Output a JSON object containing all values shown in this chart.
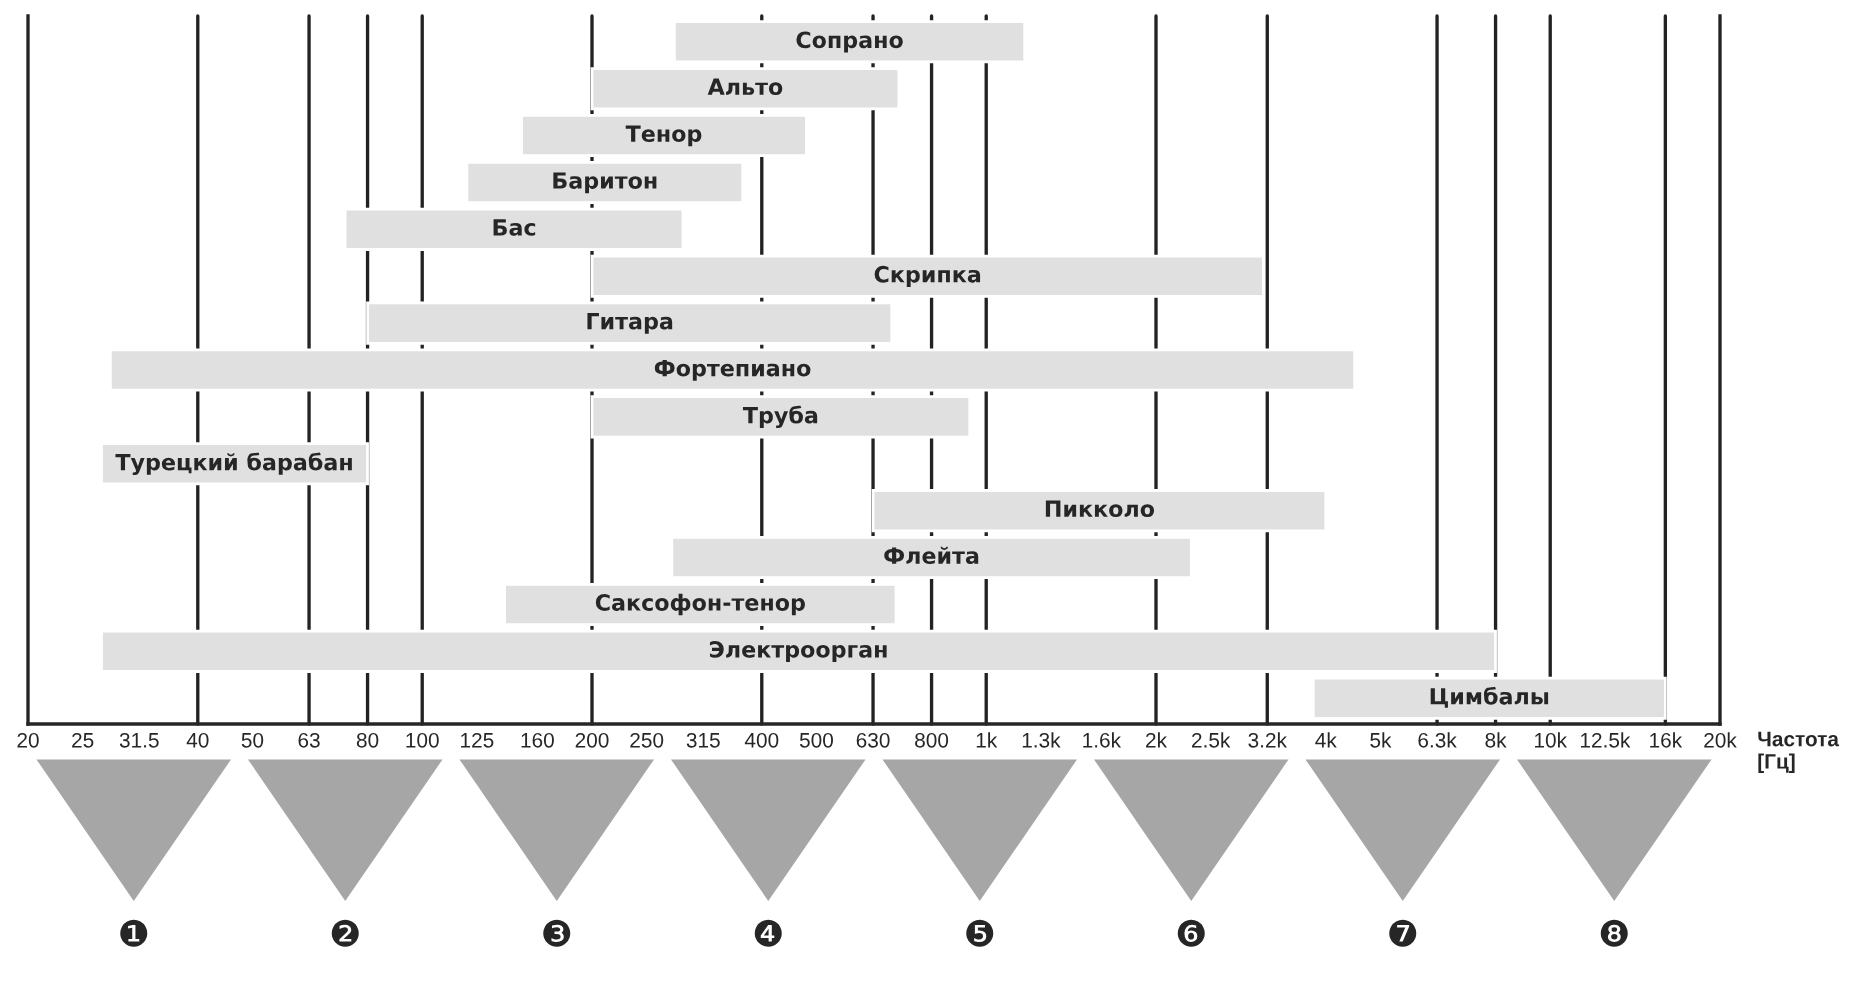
{
  "chart_data": {
    "type": "bar",
    "orientation": "horizontal",
    "log": "x",
    "xlabel": "Частота\n[Гц]",
    "tick_labels": "x",
    "categories": [
      "Сопрано",
      "Альто",
      "Тенор",
      "Баритон",
      "Бас",
      "Скрипка",
      "Гитара",
      "Фортепиано",
      "Труба",
      "Турецкий барабан",
      "Пикколо",
      "Флейта",
      "Саксофон-тенор",
      "Электроорган",
      "Цимбалы"
    ],
    "base": [
      280,
      200,
      150,
      120,
      73,
      200,
      80,
      28,
      200,
      27,
      630,
      277,
      140,
      27,
      3800
    ],
    "values": [
      890,
      500,
      330,
      250,
      217,
      2900,
      600,
      4472,
      735,
      53,
      3370,
      2033,
      552,
      7973,
      12200
    ],
    "color": "#e0e0e0",
    "xlim": [
      20,
      20000
    ],
    "xticks": [
      20,
      25,
      {
        "value": 31.5,
        "label": "31.5"
      },
      40,
      50,
      63,
      80,
      100,
      125,
      160,
      200,
      250,
      315,
      400,
      500,
      630,
      800,
      {
        "value": 1000,
        "label": "1k"
      },
      {
        "value": 1250,
        "label": "1.3k"
      },
      {
        "value": 1600,
        "label": "1.6k"
      },
      {
        "value": 2000,
        "label": "2k"
      },
      {
        "value": 2500,
        "label": "2.5k"
      },
      {
        "value": 3150,
        "label": "3.2k"
      },
      {
        "value": 4000,
        "label": "4k"
      },
      {
        "value": 5000,
        "label": "5k"
      },
      {
        "value": 6300,
        "label": "6.3k"
      },
      {
        "value": 8000,
        "label": "8k"
      },
      {
        "value": 10000,
        "label": "10k"
      },
      {
        "value": 12500,
        "label": "12.5k"
      },
      {
        "value": 16000,
        "label": "16k"
      },
      {
        "value": 20000,
        "label": "20k"
      }
    ],
    "ref_lines": [
      {
        "axis": "x",
        "value": 40
      },
      {
        "axis": "x",
        "value": 63
      },
      {
        "axis": "x",
        "value": 80
      },
      {
        "axis": "x",
        "value": 100
      },
      {
        "axis": "x",
        "value": 200
      },
      {
        "axis": "x",
        "value": 400
      },
      {
        "axis": "x",
        "value": 630
      },
      {
        "axis": "x",
        "value": 800
      },
      {
        "axis": "x",
        "value": 1000
      },
      {
        "axis": "x",
        "value": 2000
      },
      {
        "axis": "x",
        "value": 3150
      },
      {
        "axis": "x",
        "value": 6300
      },
      {
        "axis": "x",
        "value": 8000
      },
      {
        "axis": "x",
        "value": 10000
      },
      {
        "axis": "x",
        "value": 16000
      }
    ],
    "annotations": [
      "❶",
      "❷",
      "❸",
      "❹",
      "❺",
      "❻",
      "❼",
      "❽"
    ]
  }
}
